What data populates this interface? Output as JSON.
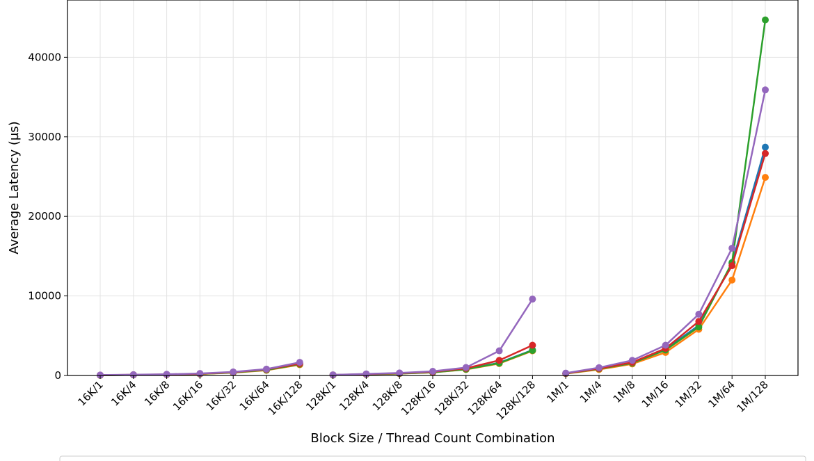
{
  "chart_data": {
    "type": "line",
    "title": "",
    "xlabel": "Block Size / Thread Count Combination",
    "ylabel": "Average Latency (µs)",
    "ylim": [
      0,
      47200
    ],
    "yticks": [
      0,
      10000,
      20000,
      30000,
      40000
    ],
    "grid": true,
    "groups": [
      [
        "16K/1",
        "16K/4",
        "16K/8",
        "16K/16",
        "16K/32",
        "16K/64",
        "16K/128"
      ],
      [
        "128K/1",
        "128K/4",
        "128K/8",
        "128K/16",
        "128K/32",
        "128K/64",
        "128K/128"
      ],
      [
        "1M/1",
        "1M/4",
        "1M/8",
        "1M/16",
        "1M/32",
        "1M/64",
        "1M/128"
      ]
    ],
    "series": [
      {
        "color": "#1f77b4",
        "values": [
          [
            30,
            80,
            120,
            200,
            380,
            700,
            1450
          ],
          [
            60,
            150,
            250,
            400,
            800,
            1600,
            3200
          ],
          [
            250,
            850,
            1600,
            3300,
            6300,
            14100,
            28700
          ]
        ]
      },
      {
        "color": "#ff7f0e",
        "values": [
          [
            30,
            75,
            110,
            190,
            350,
            650,
            1350
          ],
          [
            55,
            140,
            230,
            380,
            750,
            1500,
            3100
          ],
          [
            230,
            750,
            1450,
            2900,
            5800,
            12000,
            24900
          ]
        ]
      },
      {
        "color": "#2ca02c",
        "values": [
          [
            30,
            80,
            120,
            200,
            370,
            690,
            1420
          ],
          [
            60,
            150,
            240,
            390,
            780,
            1550,
            3150
          ],
          [
            240,
            830,
            1550,
            3200,
            6100,
            14200,
            44700
          ]
        ]
      },
      {
        "color": "#d62728",
        "values": [
          [
            40,
            90,
            130,
            220,
            420,
            760,
            1500
          ],
          [
            70,
            170,
            280,
            460,
            900,
            1900,
            3800
          ],
          [
            260,
            880,
            1650,
            3400,
            6800,
            13800,
            27900
          ]
        ]
      },
      {
        "color": "#9467bd",
        "values": [
          [
            50,
            100,
            150,
            250,
            450,
            800,
            1650
          ],
          [
            80,
            200,
            320,
            520,
            1000,
            3100,
            9600
          ],
          [
            300,
            980,
            1900,
            3800,
            7700,
            16000,
            35900
          ]
        ]
      }
    ]
  }
}
